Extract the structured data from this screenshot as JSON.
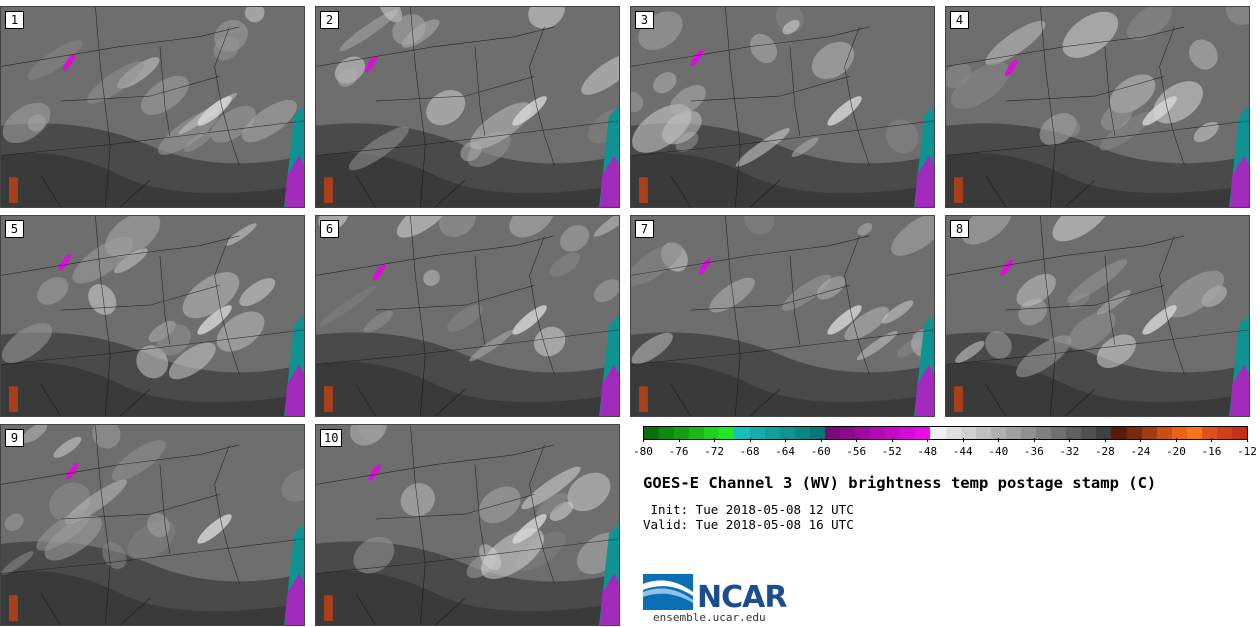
{
  "panels": [
    {
      "label": "1"
    },
    {
      "label": "2"
    },
    {
      "label": "3"
    },
    {
      "label": "4"
    },
    {
      "label": "5"
    },
    {
      "label": "6"
    },
    {
      "label": "7"
    },
    {
      "label": "8"
    },
    {
      "label": "9"
    },
    {
      "label": "10"
    }
  ],
  "colorbar": {
    "colors": [
      "#0a6e0a",
      "#0f8a0f",
      "#14a014",
      "#19b919",
      "#1ed21e",
      "#20e820",
      "#17c0b6",
      "#14aeaa",
      "#11a09e",
      "#0e9292",
      "#0b8484",
      "#087676",
      "#7a0a7a",
      "#8c0a8c",
      "#9e0a9e",
      "#b00ab0",
      "#c40ac4",
      "#d80ad8",
      "#ea0aea",
      "#f0f0f0",
      "#e0e0e0",
      "#d0d0d0",
      "#c0c0c0",
      "#b0b0b0",
      "#a0a0a0",
      "#909090",
      "#808080",
      "#707070",
      "#606060",
      "#505050",
      "#404040",
      "#5a1a0a",
      "#7a2a0e",
      "#a23c10",
      "#c85012",
      "#e86414",
      "#f07818",
      "#e0501a",
      "#d0401a",
      "#c0301a"
    ],
    "ticks": [
      "-80",
      "-76",
      "-72",
      "-68",
      "-64",
      "-60",
      "-56",
      "-52",
      "-48",
      "-44",
      "-40",
      "-36",
      "-32",
      "-28",
      "-24",
      "-20",
      "-16",
      "-12"
    ]
  },
  "title": "GOES-E Channel 3 (WV) brightness temp postage stamp (C)",
  "init_line": " Init: Tue 2018-05-08 12 UTC",
  "valid_line": "Valid: Tue 2018-05-08 16 UTC",
  "logo": {
    "name": "NCAR",
    "url": "ensemble.ucar.edu"
  }
}
